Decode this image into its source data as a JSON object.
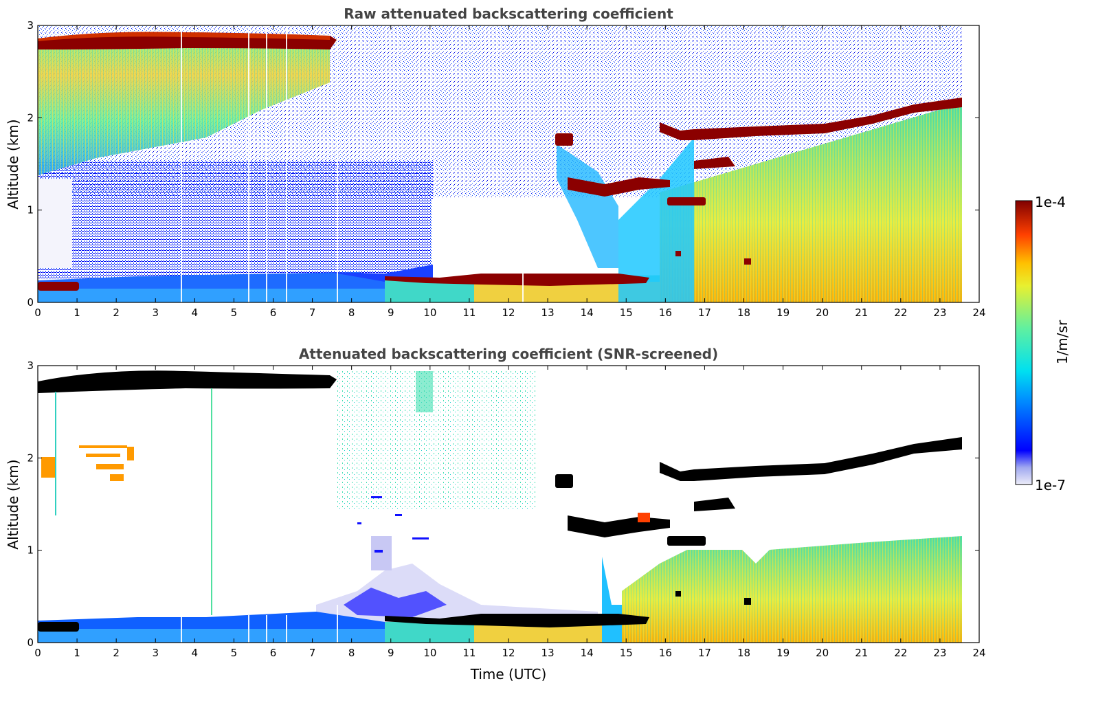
{
  "chart_data": [
    {
      "type": "heatmap",
      "title": "Raw attenuated backscattering coefficient",
      "xlabel": "",
      "ylabel": "Altitude (km)",
      "xlim": [
        0,
        24
      ],
      "ylim": [
        0,
        3
      ],
      "xticks": [
        "0",
        "1",
        "2",
        "3",
        "4",
        "5",
        "6",
        "7",
        "8",
        "9",
        "10",
        "11",
        "12",
        "13",
        "14",
        "15",
        "16",
        "17",
        "18",
        "19",
        "20",
        "21",
        "22",
        "23",
        "24"
      ],
      "yticks": [
        "0",
        "1",
        "2",
        "3"
      ],
      "data_end_time": 23.55,
      "cloud_layers": [
        {
          "t_start": 0.0,
          "t_end": 7.7,
          "alt_km": 2.82
        },
        {
          "t_start": 0.0,
          "t_end": 1.0,
          "alt_km": 0.17
        },
        {
          "t_start": 8.9,
          "t_end": 15.6,
          "alt_km": 0.27
        },
        {
          "t_start": 13.2,
          "t_end": 13.5,
          "alt_km": 1.75
        },
        {
          "t_start": 13.3,
          "t_end": 16.1,
          "alt_km": 1.3
        },
        {
          "t_start": 16.0,
          "t_end": 17.0,
          "alt_km": 1.1
        },
        {
          "t_start": 15.9,
          "t_end": 23.55,
          "alt_km": 1.9
        },
        {
          "t_start": 16.9,
          "t_end": 17.9,
          "alt_km": 1.5
        }
      ]
    },
    {
      "type": "heatmap",
      "title": "Attenuated backscattering coefficient (SNR-screened)",
      "xlabel": "Time (UTC)",
      "ylabel": "Altitude (km)",
      "xlim": [
        0,
        24
      ],
      "ylim": [
        0,
        3
      ],
      "xticks": [
        "0",
        "1",
        "2",
        "3",
        "4",
        "5",
        "6",
        "7",
        "8",
        "9",
        "10",
        "11",
        "12",
        "13",
        "14",
        "15",
        "16",
        "17",
        "18",
        "19",
        "20",
        "21",
        "22",
        "23",
        "24"
      ],
      "yticks": [
        "0",
        "1",
        "2",
        "3"
      ],
      "data_end_time": 23.55
    }
  ],
  "colorbar": {
    "label": "1/m/sr",
    "max_label": "1e-4",
    "min_label": "1e-7",
    "scale": "log",
    "colormap": "jet"
  },
  "colors": {
    "title": "#444444",
    "cloud_raw": "#8b0000",
    "cloud_screened": "#000000"
  }
}
